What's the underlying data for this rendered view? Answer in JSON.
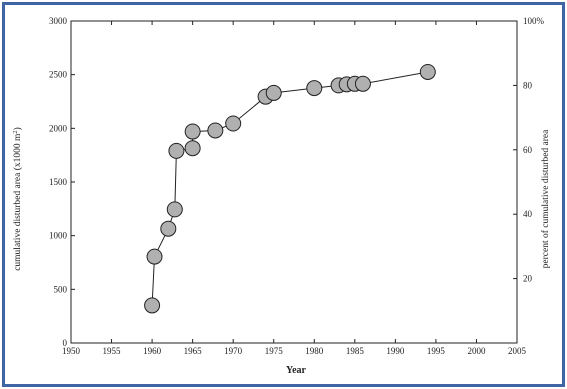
{
  "colors": {
    "frame": "#3f65a5",
    "marker_fill": "#b0b0b0",
    "marker_stroke": "#222222",
    "line": "#222222"
  },
  "chart_data": {
    "type": "scatter",
    "xlabel": "Year",
    "ylabel": "cumulative disturbed area (x1000 m2)",
    "ylabel_parts": {
      "base": "cumulative disturbed area (x1000 m",
      "sup": "2",
      "end": ")"
    },
    "y2label": "percent of cumulative disturbed area",
    "xlim": [
      1950,
      2005
    ],
    "ylim": [
      0,
      3000
    ],
    "y2lim": [
      0,
      100
    ],
    "x_ticks": [
      1950,
      1955,
      1960,
      1965,
      1970,
      1975,
      1980,
      1985,
      1990,
      1995,
      2000,
      2005
    ],
    "y_ticks": [
      0,
      500,
      1000,
      1500,
      2000,
      2500,
      3000
    ],
    "y2_ticks": [
      {
        "value": 20,
        "label": "20"
      },
      {
        "value": 40,
        "label": "40"
      },
      {
        "value": 60,
        "label": "60"
      },
      {
        "value": 80,
        "label": "80"
      },
      {
        "value": 100,
        "label": "100%"
      }
    ],
    "grid": false,
    "connected": true,
    "x": [
      1960,
      1960.3,
      1962,
      1962.8,
      1963,
      1965,
      1965,
      1967.8,
      1970,
      1974,
      1975,
      1980,
      1983,
      1984,
      1985,
      1986,
      1994
    ],
    "y": [
      350,
      805,
      1065,
      1245,
      1790,
      1815,
      1970,
      1980,
      2045,
      2295,
      2330,
      2375,
      2400,
      2410,
      2415,
      2415,
      2525
    ]
  }
}
